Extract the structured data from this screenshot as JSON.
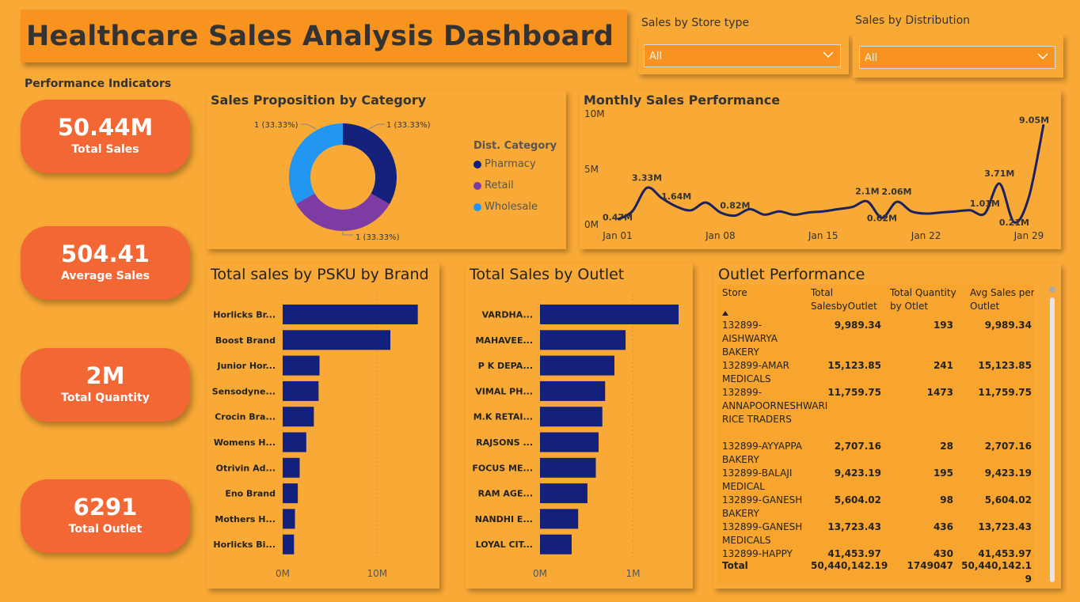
{
  "header": {
    "title": "Healthcare Sales Analysis Dashboard"
  },
  "slicers": [
    {
      "label": "Sales by Store type",
      "value": "All"
    },
    {
      "label": "Sales by Distribution",
      "value": "All"
    }
  ],
  "performance": {
    "label": "Performance Indicators",
    "kpis": [
      {
        "value": "50.44M",
        "label": "Total Sales"
      },
      {
        "value": "504.41",
        "label": "Average Sales"
      },
      {
        "value": "2M",
        "label": "Total Quantity"
      },
      {
        "value": "6291",
        "label": "Total Outlet"
      }
    ]
  },
  "colors": {
    "navy": "#13217D",
    "purple": "#7E3BA3",
    "blue": "#2196F3",
    "kpi": "#F26734",
    "bg": "#F9A936"
  },
  "donut": {
    "title": "Sales Proposition by Category",
    "legend_title": "Dist. Category",
    "labels": [
      "1 (33.33%)",
      "1 (33.33%)",
      "1 (33.33%)"
    ]
  },
  "line_chart": {
    "title": "Monthly Sales Performance"
  },
  "brand_chart": {
    "title": "Total sales by PSKU by Brand"
  },
  "outlet_chart": {
    "title": "Total Sales by Outlet"
  },
  "chart_data": [
    {
      "type": "pie",
      "categories": [
        "Pharmacy",
        "Retail",
        "Wholesale"
      ],
      "values": [
        1,
        1,
        1
      ],
      "colors": [
        "#13217D",
        "#7E3BA3",
        "#2196F3"
      ]
    },
    {
      "type": "line",
      "x": [
        "Jan 01",
        "Jan 02",
        "Jan 03",
        "Jan 04",
        "Jan 05",
        "Jan 06",
        "Jan 07",
        "Jan 08",
        "Jan 09",
        "Jan 10",
        "Jan 11",
        "Jan 12",
        "Jan 13",
        "Jan 14",
        "Jan 15",
        "Jan 16",
        "Jan 17",
        "Jan 18",
        "Jan 19",
        "Jan 20",
        "Jan 21",
        "Jan 22",
        "Jan 23",
        "Jan 24",
        "Jan 25",
        "Jan 26",
        "Jan 27",
        "Jan 28",
        "Jan 29",
        "Jan 30"
      ],
      "values": [
        0.47,
        1.2,
        3.33,
        2.4,
        1.64,
        1.3,
        2.0,
        1.1,
        0.82,
        1.4,
        0.9,
        1.2,
        0.9,
        1.1,
        1.2,
        1.4,
        1.6,
        2.1,
        0.62,
        2.06,
        1.2,
        1.0,
        1.1,
        1.2,
        1.3,
        1.01,
        3.71,
        0.21,
        2.5,
        9.05
      ],
      "point_labels": {
        "0": "0.47M",
        "2": "3.33M",
        "4": "1.64M",
        "8": "0.82M",
        "17": "2.1M",
        "18": "0.62M",
        "19": "2.06M",
        "25": "1.01M",
        "26": "3.71M",
        "27": "0.21M",
        "29": "9.05M"
      },
      "x_ticks": [
        "Jan 01",
        "Jan 08",
        "Jan 15",
        "Jan 22",
        "Jan 29"
      ],
      "y_ticks": [
        "0M",
        "5M",
        "10M"
      ],
      "ylim": [
        0,
        10
      ]
    },
    {
      "type": "bar",
      "categories": [
        "Horlicks Br...",
        "Boost Brand",
        "Junior Hor...",
        "Sensodyne...",
        "Crocin Bra...",
        "Womens H...",
        "Otrivin Ad...",
        "Eno Brand",
        "Mothers H...",
        "Horlicks Bi..."
      ],
      "values": [
        14.3,
        11.4,
        3.9,
        3.8,
        3.3,
        2.5,
        1.8,
        1.6,
        1.3,
        1.2
      ],
      "x_ticks": [
        "0M",
        "10M"
      ],
      "xlim": [
        0,
        15
      ]
    },
    {
      "type": "bar",
      "categories": [
        "VARDHA...",
        "MAHAVEE...",
        "P K DEPA...",
        "VIMAL PH...",
        "M.K RETAI...",
        "RAJSONS ...",
        "FOCUS ME...",
        "RAM AGE...",
        "NANDHI E...",
        "LOYAL CIT..."
      ],
      "values": [
        1.49,
        0.92,
        0.8,
        0.7,
        0.67,
        0.63,
        0.6,
        0.51,
        0.41,
        0.34
      ],
      "x_ticks": [
        "0M",
        "1M"
      ],
      "xlim": [
        0,
        1.6
      ]
    },
    {
      "type": "table",
      "title": "Outlet Performance",
      "columns": [
        "Store",
        "Total SalesbyOutlet",
        "Total Quantity by Otlet",
        "Avg Sales per Outlet"
      ],
      "rows": [
        [
          "132899-AISHWARYA BAKERY",
          "9,989.34",
          "193",
          "9,989.34"
        ],
        [
          "132899-AMAR MEDICALS",
          "15,123.85",
          "241",
          "15,123.85"
        ],
        [
          "132899-ANNAPOORNESHWARI RICE TRADERS",
          "11,759.75",
          "1473",
          "11,759.75"
        ],
        [
          "132899-AYYAPPA BAKERY",
          "2,707.16",
          "28",
          "2,707.16"
        ],
        [
          "132899-BALAJI MEDICAL",
          "9,423.19",
          "195",
          "9,423.19"
        ],
        [
          "132899-GANESH BAKERY",
          "5,604.02",
          "98",
          "5,604.02"
        ],
        [
          "132899-GANESH MEDICALS",
          "13,723.43",
          "436",
          "13,723.43"
        ],
        [
          "132899-HAPPY",
          "41,453.97",
          "430",
          "41,453.97"
        ]
      ],
      "total": [
        "Total",
        "50,440,142.19",
        "1749047",
        "50,440,142.19"
      ]
    }
  ]
}
